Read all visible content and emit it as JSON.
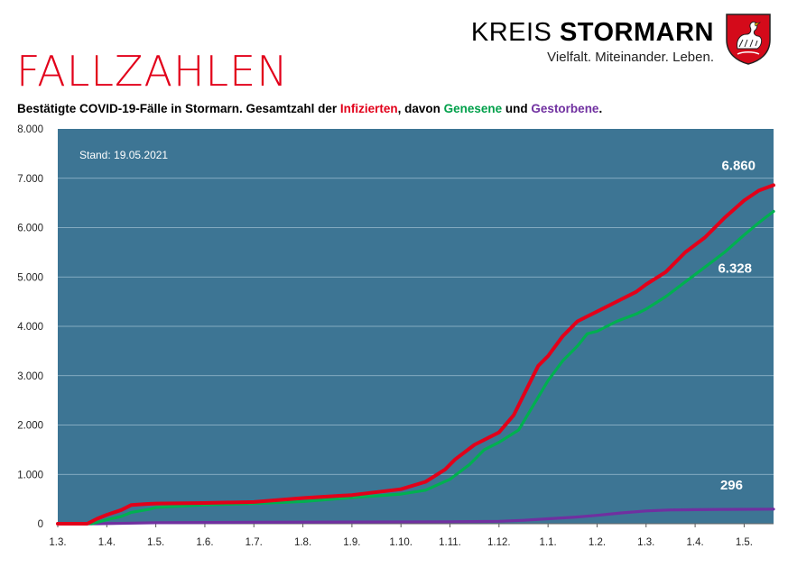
{
  "header": {
    "heading": "FALLZAHLEN",
    "subtitle_parts": {
      "lead": "Bestätigte COVID-19-Fälle in Stormarn. Gesamtzahl der ",
      "infected": "Infizierten",
      "mid1": ", davon ",
      "recovered": "Genesene",
      "mid2": " und ",
      "deceased": "Gestorbene",
      "end": "."
    }
  },
  "brand": {
    "name_light": "KREIS ",
    "name_bold": "STORMARN",
    "tagline": "Vielfalt. Miteinander. Leben.",
    "crest_icon": "swan-crest-icon"
  },
  "colors": {
    "plot_bg": "#3d7594",
    "infected": "#e2001a",
    "recovered": "#00b050",
    "deceased": "#7030a0",
    "gridline": "#9dbdcf"
  },
  "chart_data": {
    "type": "line",
    "annotation": "Stand: 19.05.2021",
    "ylim": [
      0,
      8000
    ],
    "ytick_labels": [
      "0",
      "1.000",
      "2.000",
      "3.000",
      "4.000",
      "5.000",
      "6.000",
      "7.000",
      "8.000"
    ],
    "xtick_labels": [
      "1.3.",
      "1.4.",
      "1.5.",
      "1.6.",
      "1.7.",
      "1.8.",
      "1.9.",
      "1.10.",
      "1.11.",
      "1.12.",
      "1.1.",
      "1.2.",
      "1.3.",
      "1.4.",
      "1.5."
    ],
    "x_unit": "months since 1.3.2020",
    "xlim": [
      0,
      14.6
    ],
    "grid": true,
    "series": [
      {
        "key": "infected",
        "color": "#e2001a",
        "end_label": "6.860",
        "x": [
          0,
          0.6,
          0.8,
          1.0,
          1.3,
          1.5,
          1.8,
          2.0,
          3.0,
          4.0,
          5.0,
          6.0,
          7.0,
          7.5,
          7.9,
          8.1,
          8.5,
          9.0,
          9.3,
          9.6,
          9.8,
          10.0,
          10.3,
          10.6,
          10.8,
          11.0,
          11.4,
          11.8,
          12.0,
          12.4,
          12.8,
          13.2,
          13.6,
          14.0,
          14.3,
          14.6
        ],
        "values": [
          0,
          0,
          100,
          180,
          280,
          380,
          400,
          410,
          420,
          440,
          520,
          580,
          700,
          850,
          1100,
          1300,
          1600,
          1850,
          2200,
          2800,
          3200,
          3400,
          3800,
          4100,
          4200,
          4300,
          4500,
          4700,
          4850,
          5100,
          5500,
          5800,
          6200,
          6550,
          6750,
          6860
        ]
      },
      {
        "key": "recovered",
        "color": "#00b050",
        "end_label": "6.328",
        "x": [
          0,
          0.7,
          1.0,
          1.3,
          1.5,
          1.9,
          2.0,
          3.0,
          4.0,
          5.0,
          6.0,
          7.0,
          7.5,
          8.0,
          8.4,
          8.7,
          9.0,
          9.4,
          9.7,
          10.0,
          10.3,
          10.6,
          10.8,
          11.0,
          11.4,
          11.8,
          12.0,
          12.4,
          12.8,
          13.2,
          13.6,
          14.0,
          14.3,
          14.6
        ],
        "values": [
          0,
          0,
          80,
          150,
          230,
          300,
          330,
          380,
          410,
          450,
          530,
          600,
          680,
          900,
          1200,
          1500,
          1650,
          1900,
          2400,
          2900,
          3300,
          3600,
          3850,
          3900,
          4100,
          4250,
          4350,
          4600,
          4900,
          5200,
          5500,
          5850,
          6100,
          6328
        ]
      },
      {
        "key": "deceased",
        "color": "#7030a0",
        "end_label": "296",
        "x": [
          0,
          0.8,
          2.0,
          4.0,
          6.0,
          8.0,
          9.0,
          9.5,
          10.0,
          10.5,
          11.0,
          11.5,
          12.0,
          12.5,
          13.0,
          13.5,
          14.0,
          14.6
        ],
        "values": [
          0,
          0,
          20,
          30,
          35,
          40,
          50,
          70,
          100,
          130,
          170,
          220,
          260,
          280,
          285,
          290,
          293,
          296
        ]
      }
    ]
  }
}
